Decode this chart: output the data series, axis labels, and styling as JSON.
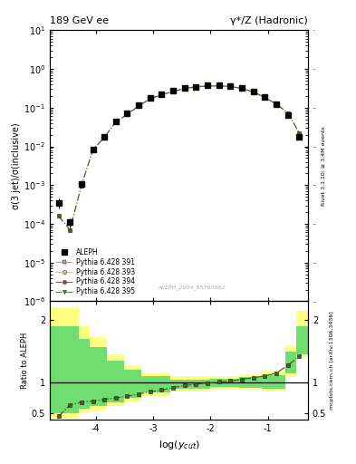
{
  "title_left": "189 GeV ee",
  "title_right": "γ*/Z (Hadronic)",
  "ylabel_main": "σ(3 jet)/σ(inclusive)",
  "ylabel_ratio": "Ratio to ALEPH",
  "xlabel": "log(y_{cut})",
  "right_label_top": "Rivet 3.1.10; ≥ 3.4M events",
  "right_label_bot": "mcplots.cern.ch [arXiv:1306.3436]",
  "watermark": "ALEPH_2004_S5765862",
  "ylim_main": [
    1e-06,
    10
  ],
  "ylim_ratio": [
    0.4,
    2.3
  ],
  "xlim": [
    -4.8,
    -0.3
  ],
  "aleph_x": [
    -4.65,
    -4.45,
    -4.25,
    -4.05,
    -3.85,
    -3.65,
    -3.45,
    -3.25,
    -3.05,
    -2.85,
    -2.65,
    -2.45,
    -2.25,
    -2.05,
    -1.85,
    -1.65,
    -1.45,
    -1.25,
    -1.05,
    -0.85,
    -0.65,
    -0.45
  ],
  "aleph_y": [
    0.00035,
    0.00011,
    0.00105,
    0.0085,
    0.018,
    0.045,
    0.07,
    0.115,
    0.175,
    0.22,
    0.27,
    0.32,
    0.35,
    0.37,
    0.37,
    0.36,
    0.32,
    0.26,
    0.19,
    0.12,
    0.065,
    0.018
  ],
  "aleph_yerr": [
    0.0001,
    3e-05,
    0.0002,
    0.001,
    0.002,
    0.004,
    0.005,
    0.008,
    0.01,
    0.012,
    0.013,
    0.014,
    0.015,
    0.015,
    0.015,
    0.014,
    0.013,
    0.012,
    0.01,
    0.009,
    0.006,
    0.002
  ],
  "mc_x": [
    -4.65,
    -4.45,
    -4.25,
    -4.05,
    -3.85,
    -3.65,
    -3.45,
    -3.25,
    -3.05,
    -2.85,
    -2.65,
    -2.45,
    -2.25,
    -2.05,
    -1.85,
    -1.65,
    -1.45,
    -1.25,
    -1.05,
    -0.85,
    -0.65,
    -0.45
  ],
  "mc_y_394": [
    0.00016,
    7e-05,
    0.00097,
    0.0081,
    0.0172,
    0.0425,
    0.067,
    0.111,
    0.169,
    0.214,
    0.263,
    0.313,
    0.343,
    0.363,
    0.363,
    0.353,
    0.313,
    0.253,
    0.183,
    0.123,
    0.073,
    0.022
  ],
  "ratio_x": [
    -4.65,
    -4.45,
    -4.25,
    -4.05,
    -3.85,
    -3.65,
    -3.45,
    -3.25,
    -3.05,
    -2.85,
    -2.65,
    -2.45,
    -2.25,
    -2.05,
    -1.85,
    -1.65,
    -1.45,
    -1.25,
    -1.05,
    -0.85,
    -0.65,
    -0.45
  ],
  "ratio_y": [
    0.457,
    0.636,
    0.686,
    0.7,
    0.729,
    0.752,
    0.778,
    0.817,
    0.851,
    0.877,
    0.919,
    0.95,
    0.973,
    0.99,
    1.008,
    1.025,
    1.048,
    1.078,
    1.105,
    1.15,
    1.275,
    1.42
  ],
  "band_x_edges": [
    -4.8,
    -4.5,
    -4.3,
    -4.1,
    -3.8,
    -3.5,
    -3.2,
    -2.7,
    -2.0,
    -1.5,
    -1.1,
    -0.7,
    -0.5,
    -0.3
  ],
  "band_yellow_lo": [
    0.42,
    0.42,
    0.5,
    0.55,
    0.62,
    0.7,
    0.78,
    0.86,
    0.9,
    0.88,
    0.85,
    1.1,
    1.4,
    1.4
  ],
  "band_yellow_hi": [
    2.2,
    2.2,
    1.9,
    1.72,
    1.45,
    1.28,
    1.15,
    1.1,
    1.1,
    1.13,
    1.17,
    1.6,
    2.15,
    2.15
  ],
  "band_green_lo": [
    0.5,
    0.5,
    0.58,
    0.62,
    0.68,
    0.76,
    0.84,
    0.9,
    0.93,
    0.91,
    0.9,
    1.15,
    1.45,
    1.45
  ],
  "band_green_hi": [
    1.9,
    1.9,
    1.7,
    1.57,
    1.35,
    1.2,
    1.1,
    1.05,
    1.06,
    1.09,
    1.12,
    1.5,
    1.9,
    1.9
  ],
  "color_394": "#4a3728",
  "color_395": "#4a6028",
  "color_aleph": "black",
  "marker_aleph": "s",
  "marker_mc": "s"
}
